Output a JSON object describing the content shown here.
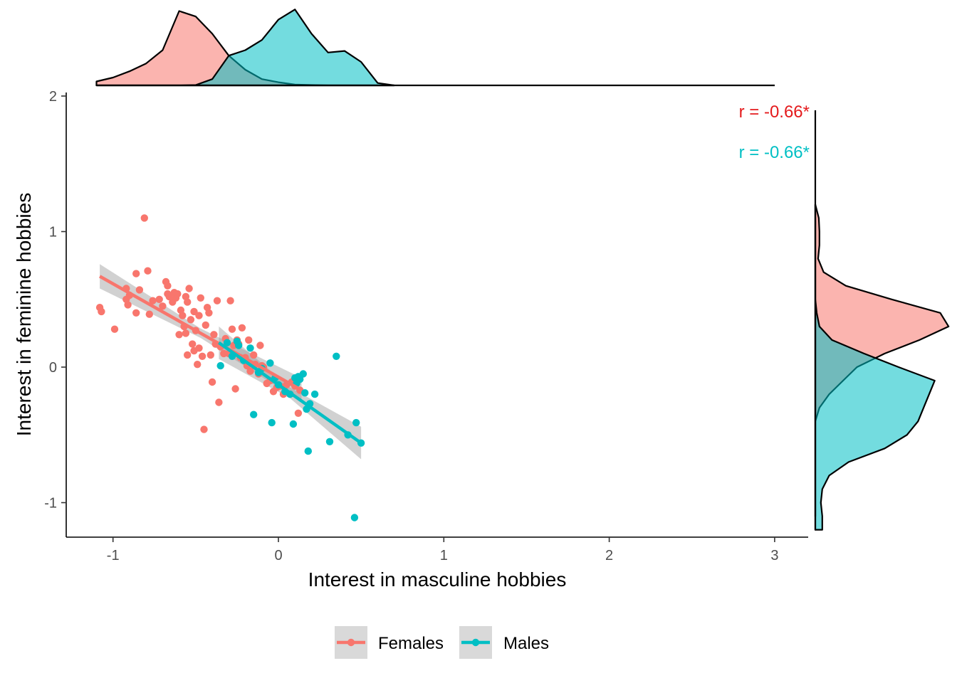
{
  "chart_data": {
    "type": "scatter",
    "xlabel": "Interest in masculine hobbies",
    "ylabel": "Interest in feminine hobbies",
    "xlim": [
      -1.3,
      3.2
    ],
    "ylim": [
      -1.25,
      2.05
    ],
    "xticks": [
      "-1",
      "0",
      "1",
      "2",
      "3"
    ],
    "yticks": [
      "-1",
      "0",
      "1",
      "2"
    ],
    "grid": false,
    "legend_position": "bottom",
    "marginal_density": "top-and-right",
    "series": [
      {
        "name": "Females",
        "color": "#F8766D",
        "fill": "#F8766D",
        "fit": {
          "x": [
            -1.08,
            0.14
          ],
          "y": [
            0.67,
            -0.17
          ]
        },
        "points": [
          [
            -1.08,
            0.44
          ],
          [
            -1.07,
            0.41
          ],
          [
            -0.99,
            0.28
          ],
          [
            -0.92,
            0.58
          ],
          [
            -0.92,
            0.5
          ],
          [
            -0.91,
            0.46
          ],
          [
            -0.9,
            0.53
          ],
          [
            -0.86,
            0.69
          ],
          [
            -0.86,
            0.4
          ],
          [
            -0.84,
            0.57
          ],
          [
            -0.81,
            1.1
          ],
          [
            -0.79,
            0.71
          ],
          [
            -0.78,
            0.39
          ],
          [
            -0.76,
            0.49
          ],
          [
            -0.72,
            0.5
          ],
          [
            -0.7,
            0.45
          ],
          [
            -0.68,
            0.63
          ],
          [
            -0.67,
            0.6
          ],
          [
            -0.67,
            0.54
          ],
          [
            -0.66,
            0.52
          ],
          [
            -0.64,
            0.48
          ],
          [
            -0.63,
            0.55
          ],
          [
            -0.62,
            0.51
          ],
          [
            -0.61,
            0.54
          ],
          [
            -0.6,
            0.24
          ],
          [
            -0.59,
            0.42
          ],
          [
            -0.58,
            0.38
          ],
          [
            -0.57,
            0.3
          ],
          [
            -0.56,
            0.52
          ],
          [
            -0.56,
            0.25
          ],
          [
            -0.55,
            0.48
          ],
          [
            -0.55,
            0.09
          ],
          [
            -0.54,
            0.58
          ],
          [
            -0.53,
            0.35
          ],
          [
            -0.52,
            0.17
          ],
          [
            -0.51,
            0.41
          ],
          [
            -0.51,
            0.12
          ],
          [
            -0.5,
            0.27
          ],
          [
            -0.49,
            0.02
          ],
          [
            -0.48,
            0.38
          ],
          [
            -0.48,
            0.14
          ],
          [
            -0.47,
            0.51
          ],
          [
            -0.46,
            0.08
          ],
          [
            -0.45,
            -0.46
          ],
          [
            -0.44,
            0.31
          ],
          [
            -0.43,
            0.44
          ],
          [
            -0.42,
            0.4
          ],
          [
            -0.41,
            0.09
          ],
          [
            -0.4,
            -0.11
          ],
          [
            -0.39,
            0.24
          ],
          [
            -0.38,
            0.17
          ],
          [
            -0.37,
            0.49
          ],
          [
            -0.36,
            -0.26
          ],
          [
            -0.35,
            0.15
          ],
          [
            -0.33,
            0.1
          ],
          [
            -0.32,
            0.21
          ],
          [
            -0.3,
            0.1
          ],
          [
            -0.29,
            0.49
          ],
          [
            -0.28,
            0.28
          ],
          [
            -0.27,
            0.16
          ],
          [
            -0.26,
            -0.16
          ],
          [
            -0.25,
            0.2
          ],
          [
            -0.24,
            0.17
          ],
          [
            -0.23,
            0.07
          ],
          [
            -0.22,
            0.29
          ],
          [
            -0.2,
            0.07
          ],
          [
            -0.19,
            0.01
          ],
          [
            -0.18,
            0.2
          ],
          [
            -0.17,
            -0.03
          ],
          [
            -0.15,
            0.09
          ],
          [
            -0.14,
            0.02
          ],
          [
            -0.12,
            -0.05
          ],
          [
            -0.11,
            0.16
          ],
          [
            -0.1,
            0.01
          ],
          [
            -0.09,
            0.0
          ],
          [
            -0.07,
            -0.12
          ],
          [
            -0.05,
            -0.1
          ],
          [
            -0.03,
            -0.18
          ],
          [
            -0.01,
            -0.15
          ],
          [
            0.01,
            -0.14
          ],
          [
            0.03,
            -0.2
          ],
          [
            0.05,
            -0.13
          ],
          [
            0.08,
            -0.11
          ],
          [
            0.1,
            -0.14
          ],
          [
            0.12,
            -0.34
          ],
          [
            0.13,
            -0.17
          ]
        ]
      },
      {
        "name": "Males",
        "color": "#00BFC4",
        "fill": "#00BFC4",
        "fit": {
          "x": [
            -0.36,
            0.5
          ],
          "y": [
            0.18,
            -0.56
          ]
        },
        "points": [
          [
            -0.35,
            0.01
          ],
          [
            -0.31,
            0.18
          ],
          [
            -0.28,
            0.08
          ],
          [
            -0.25,
            0.19
          ],
          [
            -0.24,
            0.16
          ],
          [
            -0.21,
            0.05
          ],
          [
            -0.17,
            0.14
          ],
          [
            -0.15,
            -0.35
          ],
          [
            -0.12,
            -0.04
          ],
          [
            -0.1,
            -0.01
          ],
          [
            -0.05,
            0.03
          ],
          [
            -0.04,
            -0.41
          ],
          [
            -0.02,
            -0.08
          ],
          [
            0.0,
            -0.13
          ],
          [
            0.04,
            -0.18
          ],
          [
            0.07,
            -0.2
          ],
          [
            0.09,
            -0.42
          ],
          [
            0.1,
            -0.08
          ],
          [
            0.11,
            -0.12
          ],
          [
            0.12,
            -0.07
          ],
          [
            0.13,
            -0.09
          ],
          [
            0.15,
            -0.05
          ],
          [
            0.16,
            -0.19
          ],
          [
            0.17,
            -0.31
          ],
          [
            0.18,
            -0.62
          ],
          [
            0.19,
            -0.27
          ],
          [
            0.22,
            -0.2
          ],
          [
            0.31,
            -0.55
          ],
          [
            0.35,
            0.08
          ],
          [
            0.42,
            -0.5
          ],
          [
            0.46,
            -1.11
          ],
          [
            0.47,
            -0.41
          ],
          [
            0.5,
            -0.56
          ]
        ]
      }
    ],
    "annotations": [
      {
        "text": "r = -0.66*",
        "color": "#E41A1C"
      },
      {
        "text": "r = -0.66*",
        "color": "#00BFC4"
      }
    ],
    "top_density": {
      "x": [
        -1.1,
        -1.0,
        -0.9,
        -0.8,
        -0.7,
        -0.6,
        -0.5,
        -0.4,
        -0.3,
        -0.2,
        -0.1,
        0.0,
        0.1,
        0.2,
        0.3,
        0.4,
        0.5,
        0.6,
        0.7
      ],
      "Females": [
        0.05,
        0.1,
        0.18,
        0.28,
        0.45,
        0.95,
        0.88,
        0.66,
        0.38,
        0.2,
        0.08,
        0.04,
        0.01,
        0.005,
        0.0,
        0.0,
        0.0,
        0.0,
        0.0
      ],
      "Males": [
        0.0,
        0.0,
        0.0,
        0.0,
        0.0,
        0.0,
        0.005,
        0.08,
        0.38,
        0.45,
        0.58,
        0.84,
        0.97,
        0.66,
        0.42,
        0.44,
        0.3,
        0.03,
        0.0
      ]
    },
    "right_density": {
      "y": [
        -1.2,
        -1.1,
        -1.0,
        -0.9,
        -0.8,
        -0.7,
        -0.6,
        -0.5,
        -0.4,
        -0.3,
        -0.2,
        -0.1,
        0.0,
        0.1,
        0.2,
        0.3,
        0.4,
        0.5,
        0.6,
        0.7,
        0.8,
        0.9,
        1.0,
        1.1,
        1.2
      ],
      "Females": [
        0.0,
        0.0,
        0.0,
        0.0,
        0.0,
        0.0,
        0.0,
        0.0,
        0.0,
        0.03,
        0.1,
        0.2,
        0.3,
        0.5,
        0.75,
        0.96,
        0.9,
        0.55,
        0.22,
        0.06,
        0.02,
        0.03,
        0.03,
        0.025,
        0.0
      ],
      "Males": [
        0.05,
        0.05,
        0.04,
        0.05,
        0.1,
        0.24,
        0.5,
        0.66,
        0.74,
        0.78,
        0.82,
        0.86,
        0.6,
        0.35,
        0.12,
        0.03,
        0.01,
        0.0,
        0.0,
        0.0,
        0.0,
        0.0,
        0.0,
        0.0,
        0.0
      ]
    }
  }
}
